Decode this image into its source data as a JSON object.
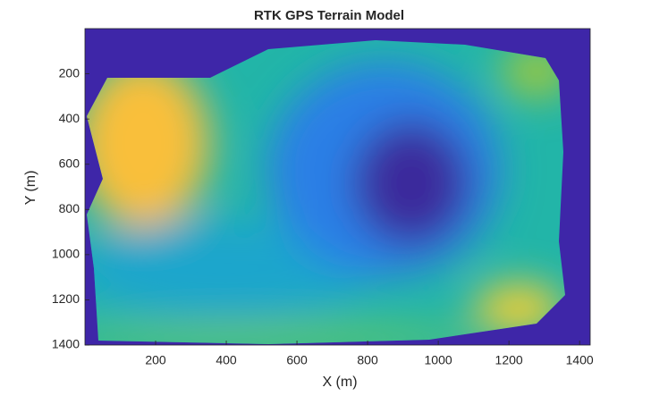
{
  "chart_data": {
    "type": "image",
    "title": "RTK GPS Terrain Model",
    "xlabel": "X (m)",
    "ylabel": "Y (m)",
    "xlim": [
      0,
      1430
    ],
    "ylim": [
      0,
      1400
    ],
    "y_reversed": true,
    "xticks": [
      200,
      400,
      600,
      800,
      1000,
      1200,
      1400
    ],
    "yticks": [
      200,
      400,
      600,
      800,
      1000,
      1200,
      1400
    ]
  }
}
